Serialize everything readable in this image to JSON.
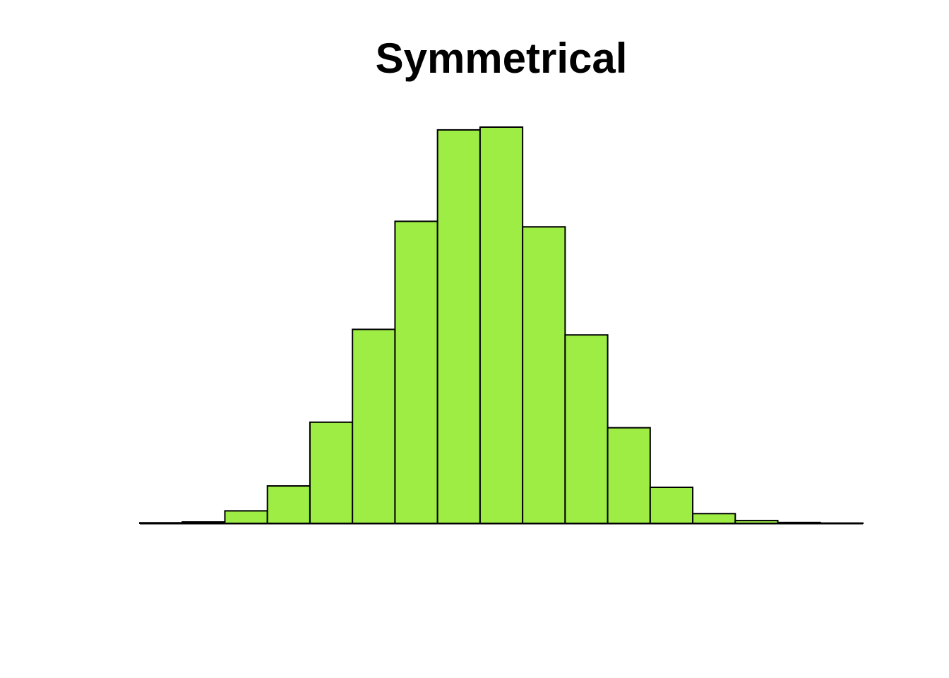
{
  "chart_data": {
    "type": "bar",
    "title": "Symmetrical",
    "xlabel": "",
    "ylabel": "",
    "grid": false,
    "axes_visible": false,
    "bar_fill": "#9DED45",
    "bar_stroke": "#000000",
    "bins": 17,
    "values": [
      0.2,
      0.5,
      4.5,
      13.5,
      36.5,
      70,
      109,
      142,
      143,
      107,
      68,
      34.5,
      13,
      3.5,
      1,
      0.3,
      0.1
    ],
    "ylim": [
      0,
      143
    ]
  }
}
